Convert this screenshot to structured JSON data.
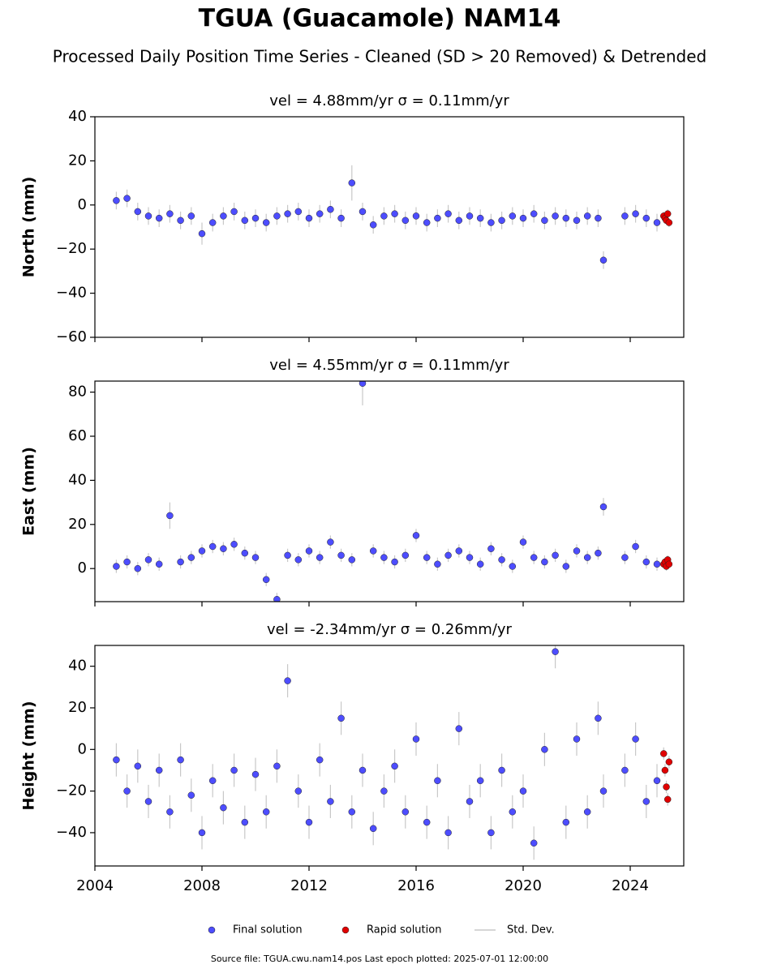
{
  "title": "TGUA (Guacamole) NAM14",
  "subtitle": "Processed Daily Position Time Series - Cleaned (SD > 20 Removed) & Detrended",
  "xlim": [
    2004,
    2026
  ],
  "xticks": [
    2004,
    2008,
    2012,
    2016,
    2020,
    2024
  ],
  "legend": {
    "entries": [
      "Final solution",
      "Rapid solution",
      "Std. Dev."
    ],
    "error_color": "#c8c8c8"
  },
  "footer": "Source file: TGUA.cwu.nam14.pos  Last epoch plotted: 2025-07-01 12:00:00",
  "chart_data": [
    {
      "type": "scatter",
      "title": "vel = 4.88mm/yr   σ = 0.11mm/yr",
      "ylabel": "North (mm)",
      "ylim": [
        -60,
        40
      ],
      "yticks": [
        {
          "value": -60,
          "label": "−60"
        },
        {
          "value": -40,
          "label": "−40"
        },
        {
          "value": -20,
          "label": "−20"
        },
        0,
        20,
        40
      ],
      "series": [
        {
          "color": "#4d4dff",
          "x": [
            2004.8,
            2005.2,
            2005.6,
            2006.0,
            2006.4,
            2006.8,
            2007.2,
            2007.6,
            2008.0,
            2008.4,
            2008.8,
            2009.2,
            2009.6,
            2010.0,
            2010.4,
            2010.8,
            2011.2,
            2011.6,
            2012.0,
            2012.4,
            2012.8,
            2013.2,
            2013.6,
            2014.0,
            2014.4,
            2014.8,
            2015.2,
            2015.6,
            2016.0,
            2016.4,
            2016.8,
            2017.2,
            2017.6,
            2018.0,
            2018.4,
            2018.8,
            2019.2,
            2019.6,
            2020.0,
            2020.4,
            2020.8,
            2021.2,
            2021.6,
            2022.0,
            2022.4,
            2022.8,
            2023.0,
            2023.8,
            2024.2,
            2024.6,
            2025.0
          ],
          "values": [
            2,
            3,
            -3,
            -5,
            -6,
            -4,
            -7,
            -5,
            -13,
            -8,
            -5,
            -3,
            -7,
            -6,
            -8,
            -5,
            -4,
            -3,
            -6,
            -4,
            -2,
            -6,
            10,
            -3,
            -9,
            -5,
            -4,
            -7,
            -5,
            -8,
            -6,
            -4,
            -7,
            -5,
            -6,
            -8,
            -7,
            -5,
            -6,
            -4,
            -7,
            -5,
            -6,
            -7,
            -5,
            -6,
            -25,
            -5,
            -4,
            -6,
            -8
          ],
          "errors": [
            4,
            4,
            4,
            4,
            4,
            4,
            4,
            4,
            5,
            4,
            4,
            4,
            4,
            4,
            4,
            4,
            4,
            4,
            4,
            4,
            4,
            4,
            8,
            4,
            4,
            4,
            4,
            4,
            4,
            4,
            4,
            4,
            4,
            4,
            4,
            4,
            4,
            4,
            4,
            4,
            4,
            4,
            4,
            4,
            4,
            4,
            4,
            4,
            4,
            4,
            4
          ]
        },
        {
          "color": "#e00000",
          "x": [
            2025.25,
            2025.3,
            2025.35,
            2025.4,
            2025.45
          ],
          "values": [
            -5,
            -6,
            -7,
            -4,
            -8
          ],
          "errors": [
            2,
            2,
            2,
            2,
            2
          ]
        }
      ]
    },
    {
      "type": "scatter",
      "title": "vel = 4.55mm/yr   σ = 0.11mm/yr",
      "ylabel": "East (mm)",
      "ylim": [
        -15,
        85
      ],
      "yticks": [
        0,
        20,
        40,
        60,
        80
      ],
      "series": [
        {
          "color": "#4d4dff",
          "x": [
            2004.8,
            2005.2,
            2005.6,
            2006.0,
            2006.4,
            2006.8,
            2007.2,
            2007.6,
            2008.0,
            2008.4,
            2008.8,
            2009.2,
            2009.6,
            2010.0,
            2010.4,
            2010.8,
            2011.2,
            2011.6,
            2012.0,
            2012.4,
            2012.8,
            2013.2,
            2013.6,
            2014.0,
            2014.4,
            2014.8,
            2015.2,
            2015.6,
            2016.0,
            2016.4,
            2016.8,
            2017.2,
            2017.6,
            2018.0,
            2018.4,
            2018.8,
            2019.2,
            2019.6,
            2020.0,
            2020.4,
            2020.8,
            2021.2,
            2021.6,
            2022.0,
            2022.4,
            2022.8,
            2023.0,
            2023.8,
            2024.2,
            2024.6,
            2025.0
          ],
          "values": [
            1,
            3,
            0,
            4,
            2,
            24,
            3,
            5,
            8,
            10,
            9,
            11,
            7,
            5,
            -5,
            -14,
            6,
            4,
            8,
            5,
            12,
            6,
            4,
            84,
            8,
            5,
            3,
            6,
            15,
            5,
            2,
            6,
            8,
            5,
            2,
            9,
            4,
            1,
            12,
            5,
            3,
            6,
            1,
            8,
            5,
            7,
            28,
            5,
            10,
            3,
            2
          ],
          "errors": [
            3,
            3,
            3,
            3,
            3,
            6,
            3,
            3,
            3,
            3,
            3,
            3,
            3,
            3,
            3,
            3,
            3,
            3,
            3,
            3,
            3,
            3,
            3,
            10,
            3,
            3,
            3,
            3,
            3,
            3,
            3,
            3,
            3,
            3,
            3,
            3,
            3,
            3,
            3,
            3,
            3,
            3,
            3,
            3,
            3,
            3,
            4,
            3,
            3,
            3,
            3
          ]
        },
        {
          "color": "#e00000",
          "x": [
            2025.25,
            2025.3,
            2025.35,
            2025.4,
            2025.45
          ],
          "values": [
            2,
            3,
            1,
            4,
            2
          ],
          "errors": [
            2,
            2,
            2,
            2,
            2
          ]
        }
      ]
    },
    {
      "type": "scatter",
      "title": "vel = -2.34mm/yr   σ = 0.26mm/yr",
      "ylabel": "Height (mm)",
      "ylim": [
        -56,
        50
      ],
      "yticks": [
        {
          "value": -40,
          "label": "−40"
        },
        {
          "value": -20,
          "label": "−20"
        },
        0,
        20,
        40
      ],
      "series": [
        {
          "color": "#4d4dff",
          "x": [
            2004.8,
            2005.2,
            2005.6,
            2006.0,
            2006.4,
            2006.8,
            2007.2,
            2007.6,
            2008.0,
            2008.4,
            2008.8,
            2009.2,
            2009.6,
            2010.0,
            2010.4,
            2010.8,
            2011.2,
            2011.6,
            2012.0,
            2012.4,
            2012.8,
            2013.2,
            2013.6,
            2014.0,
            2014.4,
            2014.8,
            2015.2,
            2015.6,
            2016.0,
            2016.4,
            2016.8,
            2017.2,
            2017.6,
            2018.0,
            2018.4,
            2018.8,
            2019.2,
            2019.6,
            2020.0,
            2020.4,
            2020.8,
            2021.2,
            2021.6,
            2022.0,
            2022.4,
            2022.8,
            2023.0,
            2023.8,
            2024.2,
            2024.6,
            2025.0
          ],
          "values": [
            -5,
            -20,
            -8,
            -25,
            -10,
            -30,
            -5,
            -22,
            -40,
            -15,
            -28,
            -10,
            -35,
            -12,
            -30,
            -8,
            33,
            -20,
            -35,
            -5,
            -25,
            15,
            -30,
            -10,
            -38,
            -20,
            -8,
            -30,
            5,
            -35,
            -15,
            -40,
            10,
            -25,
            -15,
            -40,
            -10,
            -30,
            -20,
            -45,
            0,
            47,
            -35,
            5,
            -30,
            15,
            -20,
            -10,
            5,
            -25,
            -15
          ],
          "errors": [
            8,
            8,
            8,
            8,
            8,
            8,
            8,
            8,
            8,
            8,
            8,
            8,
            8,
            8,
            8,
            8,
            8,
            8,
            8,
            8,
            8,
            8,
            8,
            8,
            8,
            8,
            8,
            8,
            8,
            8,
            8,
            8,
            8,
            8,
            8,
            8,
            8,
            8,
            8,
            8,
            8,
            8,
            8,
            8,
            8,
            8,
            8,
            8,
            8,
            8,
            8
          ]
        },
        {
          "color": "#e00000",
          "x": [
            2025.25,
            2025.3,
            2025.35,
            2025.4,
            2025.45
          ],
          "values": [
            -2,
            -10,
            -18,
            -24,
            -6
          ],
          "errors": [
            3,
            3,
            3,
            3,
            3
          ]
        }
      ]
    }
  ]
}
